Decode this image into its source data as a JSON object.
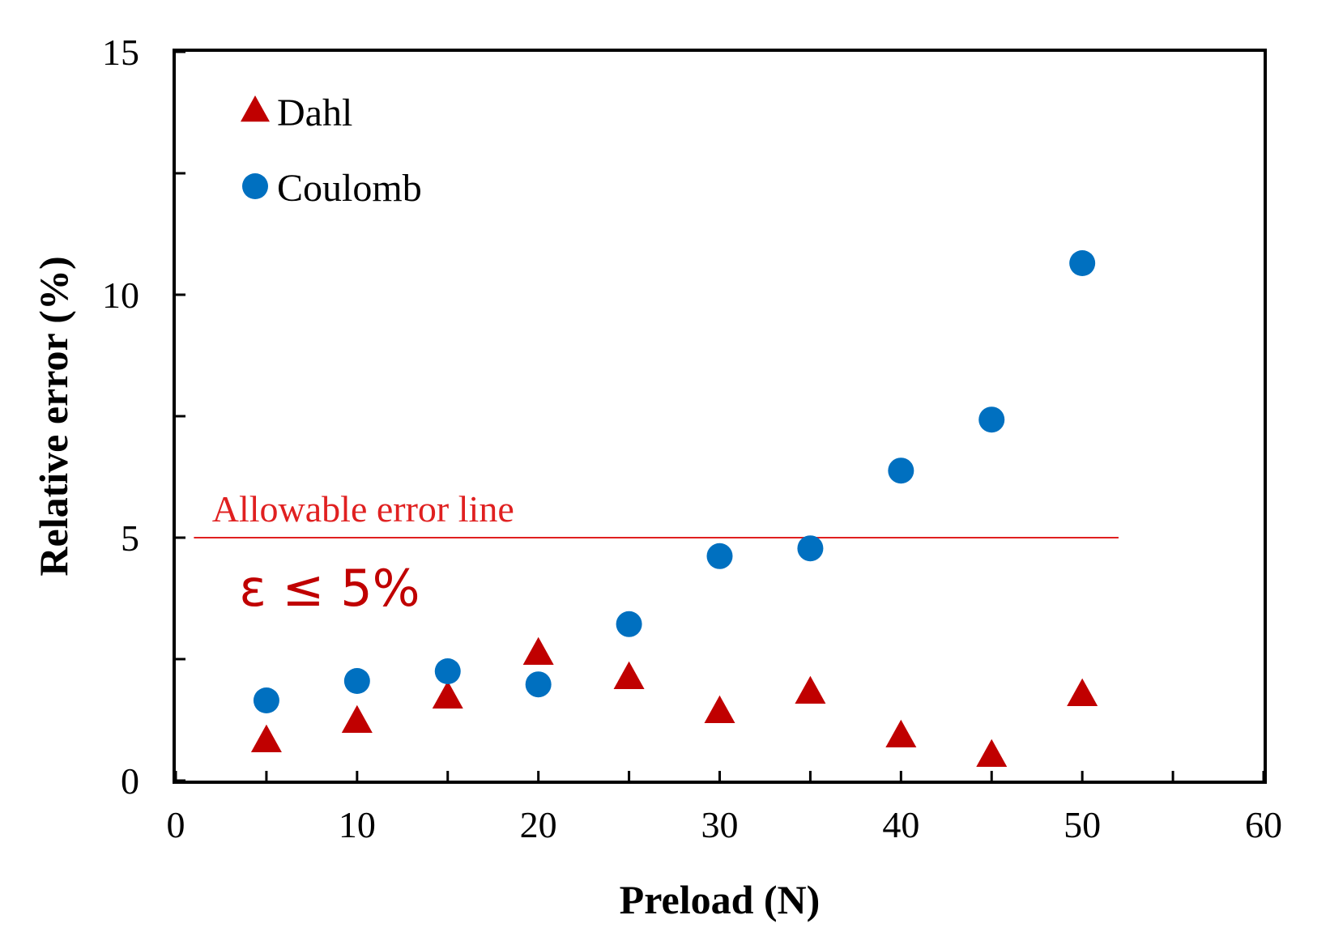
{
  "chart_data": {
    "type": "scatter",
    "title": "",
    "xlabel": "Preload (N)",
    "ylabel": "Relative error (%)",
    "xlim": [
      0,
      60
    ],
    "ylim": [
      0,
      15
    ],
    "xticks": [
      0,
      10,
      20,
      30,
      40,
      50,
      60
    ],
    "yticks": [
      0,
      5,
      10,
      15
    ],
    "legend_position": "top-left",
    "series": [
      {
        "name": "Dahl",
        "marker": "triangle",
        "color": "#c00000",
        "x": [
          5,
          10,
          15,
          20,
          25,
          30,
          35,
          40,
          45,
          50
        ],
        "y": [
          0.8,
          1.2,
          1.7,
          2.6,
          2.1,
          1.4,
          1.8,
          0.9,
          0.5,
          1.75
        ]
      },
      {
        "name": "Coulomb",
        "marker": "circle",
        "color": "#0070c0",
        "x": [
          5,
          10,
          15,
          20,
          25,
          30,
          35,
          40,
          45,
          50
        ],
        "y": [
          1.65,
          2.05,
          2.25,
          1.98,
          3.22,
          4.62,
          4.78,
          6.38,
          7.43,
          10.65
        ]
      }
    ],
    "reference_line": {
      "y": 5,
      "x_range": [
        1,
        52
      ],
      "color": "#e02020",
      "label": "Allowable error line",
      "formula": "ε ≤ 5%"
    }
  }
}
